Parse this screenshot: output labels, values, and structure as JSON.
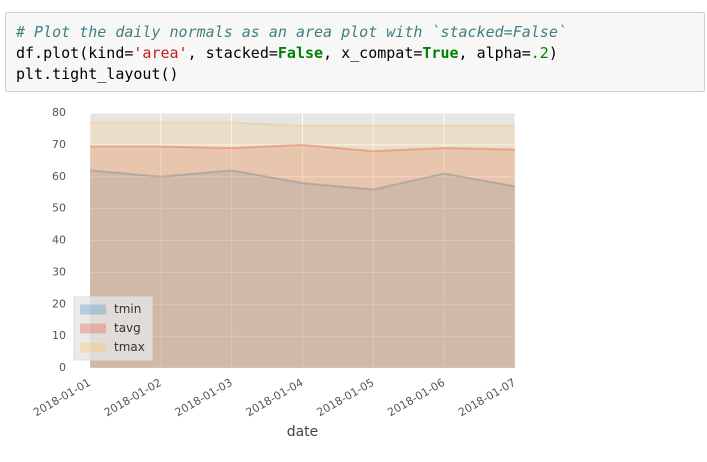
{
  "code": {
    "lines": [
      [
        "# Plot the daily normals as an area plot with `stacked=False`"
      ],
      [
        "df.plot(kind=",
        "'area'",
        ", stacked=",
        "False",
        ", x_compat=",
        "True",
        ", alpha=",
        ".2",
        ")"
      ],
      [
        "plt.tight_layout()"
      ]
    ]
  },
  "chart_data": {
    "type": "area",
    "stacked": false,
    "alpha": 0.2,
    "xlabel": "date",
    "categories": [
      "2018-01-01",
      "2018-01-02",
      "2018-01-03",
      "2018-01-04",
      "2018-01-05",
      "2018-01-06",
      "2018-01-07"
    ],
    "series": [
      {
        "name": "tmin",
        "color": "#348ABD",
        "values": [
          62,
          60,
          62,
          58,
          56,
          61,
          57
        ]
      },
      {
        "name": "tavg",
        "color": "#E24A33",
        "values": [
          69.5,
          69.5,
          69,
          70,
          68,
          69,
          68.5
        ]
      },
      {
        "name": "tmax",
        "color": "#FBC15E",
        "values": [
          77,
          77,
          77,
          76,
          76,
          76,
          76
        ]
      }
    ],
    "ylim": [
      0,
      80
    ],
    "yticks": [
      0,
      10,
      20,
      30,
      40,
      50,
      60,
      70,
      80
    ],
    "grid": true,
    "legend": "lower left"
  }
}
